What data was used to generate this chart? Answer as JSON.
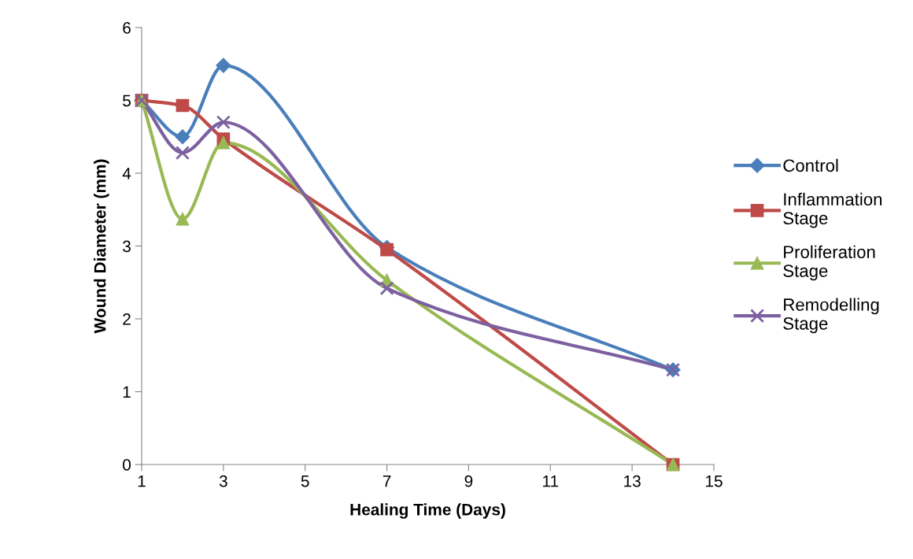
{
  "chart_data": {
    "type": "line",
    "xlabel": "Healing Time (Days)",
    "ylabel": "Wound Diameter (mm)",
    "x": [
      1,
      2,
      3,
      7,
      14
    ],
    "series": [
      {
        "name": "Control",
        "color": "#4a7ebb",
        "marker": "diamond",
        "values": [
          5,
          4.5,
          5.48,
          2.98,
          1.3
        ]
      },
      {
        "name": "Inflammation Stage",
        "color": "#be4b48",
        "marker": "square",
        "values": [
          5,
          4.93,
          4.47,
          2.95,
          0
        ]
      },
      {
        "name": "Proliferation Stage",
        "color": "#98b954",
        "marker": "triangle",
        "values": [
          5,
          3.37,
          4.42,
          2.53,
          0
        ]
      },
      {
        "name": "Remodelling Stage",
        "color": "#7d60a0",
        "marker": "cross",
        "values": [
          5,
          4.28,
          4.7,
          2.42,
          1.3
        ]
      }
    ],
    "xlim": [
      1,
      15
    ],
    "xticks": [
      1,
      3,
      5,
      7,
      9,
      11,
      13,
      15
    ],
    "ylim": [
      0,
      6
    ],
    "yticks": [
      0,
      1,
      2,
      3,
      4,
      5,
      6
    ],
    "grid": false,
    "legend": "right",
    "line_style": "solid"
  }
}
